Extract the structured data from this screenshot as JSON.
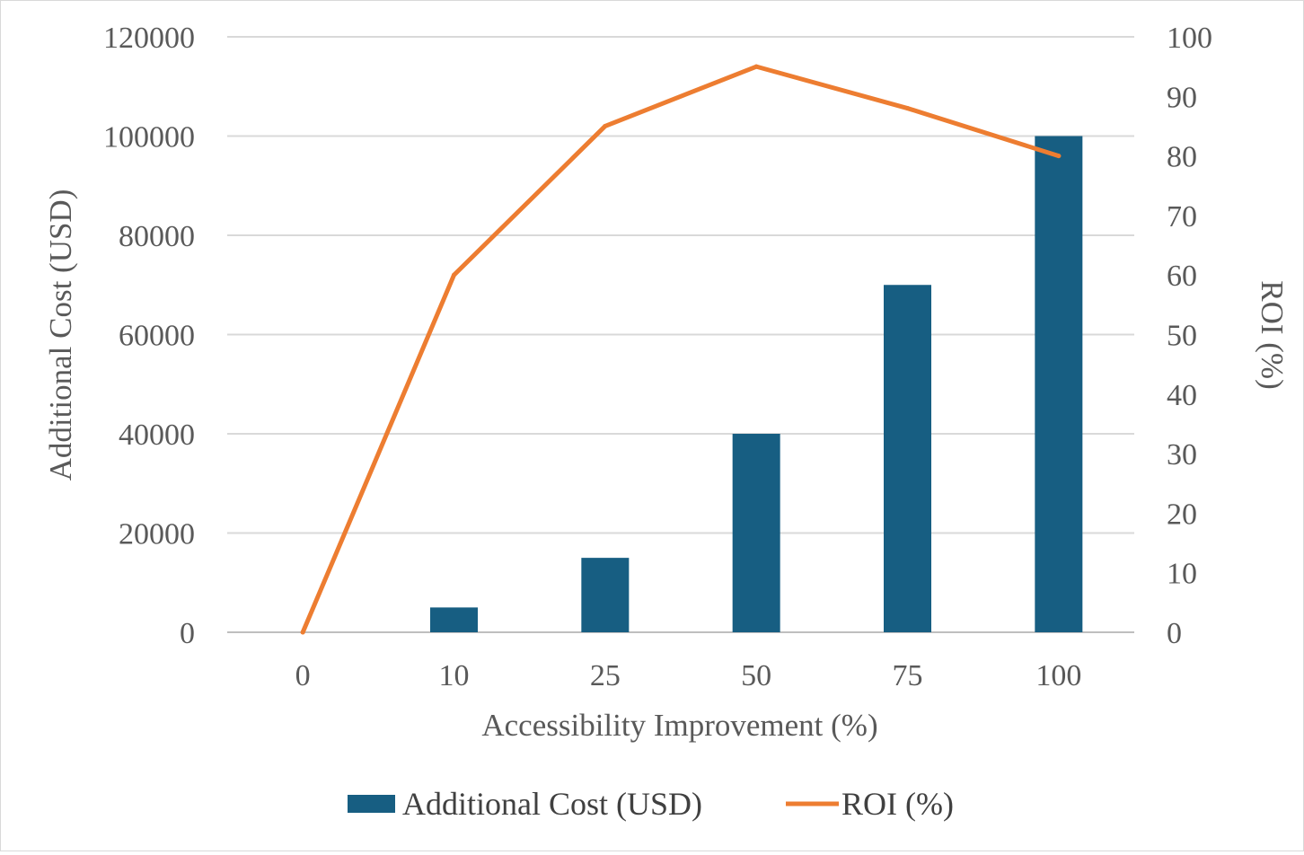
{
  "chart_data": {
    "type": "bar+line",
    "categories": [
      "0",
      "10",
      "25",
      "50",
      "75",
      "100"
    ],
    "series": [
      {
        "name": "Additional Cost (USD)",
        "type": "bar",
        "axis": "left",
        "color": "#175e82",
        "values": [
          0,
          5000,
          15000,
          40000,
          70000,
          100000
        ]
      },
      {
        "name": "ROI (%)",
        "type": "line",
        "axis": "right",
        "color": "#ed7d31",
        "values": [
          0,
          60,
          85,
          95,
          88,
          80
        ]
      }
    ],
    "xlabel": "Accessibility  Improvement  (%)",
    "ylabel_left": "Additional  Cost  (USD)",
    "ylabel_right": "ROI  (%)",
    "ylim_left": [
      0,
      120000
    ],
    "yticks_left": [
      "0",
      "20000",
      "40000",
      "60000",
      "80000",
      "100000",
      "120000"
    ],
    "ylim_right": [
      0,
      100
    ],
    "yticks_right": [
      "0",
      "10",
      "20",
      "30",
      "40",
      "50",
      "60",
      "70",
      "80",
      "90",
      "100"
    ],
    "grid": true,
    "legend_position": "bottom",
    "legend": [
      {
        "label": "Additional Cost (USD)",
        "marker": "bar",
        "color": "#175e82"
      },
      {
        "label": "ROI (%)",
        "marker": "line",
        "color": "#ed7d31"
      }
    ]
  }
}
